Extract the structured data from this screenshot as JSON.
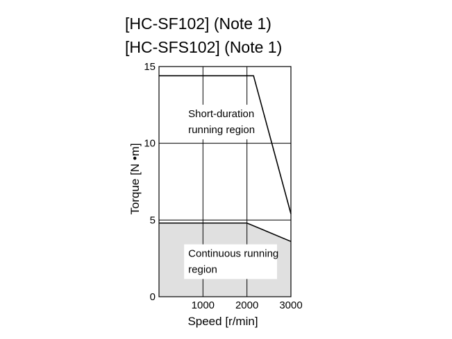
{
  "chart_data": {
    "type": "area",
    "title_lines": [
      "[HC-SF102] (Note 1)",
      "[HC-SFS102] (Note 1)"
    ],
    "xlabel": "Speed [r/min]",
    "ylabel": "Torque [N •m]",
    "xlim": [
      0,
      3000
    ],
    "ylim": [
      0,
      15
    ],
    "x_ticks": [
      1000,
      2000,
      3000
    ],
    "x_tick_labels": [
      "1000",
      "2000",
      "3000"
    ],
    "y_ticks": [
      0,
      5,
      10,
      15
    ],
    "y_tick_labels": [
      "0",
      "5",
      "10",
      "15"
    ],
    "grid": true,
    "series": [
      {
        "x": [
          0,
          2150,
          3000
        ],
        "y": [
          14.4,
          14.4,
          5.4
        ],
        "fill": false
      },
      {
        "x": [
          0,
          2000,
          3000
        ],
        "y": [
          4.8,
          4.8,
          3.6
        ],
        "fill": true
      }
    ],
    "regions": [
      {
        "lines": [
          "Short-duration",
          "running region"
        ],
        "x": 350,
        "y": 11.7
      },
      {
        "lines": [
          "Continuous running",
          "region"
        ],
        "x": 350,
        "y": 2.6
      }
    ],
    "colors": {
      "fill": "#e0e0e0",
      "line": "#000000",
      "box_bg": "#ffffff"
    }
  }
}
